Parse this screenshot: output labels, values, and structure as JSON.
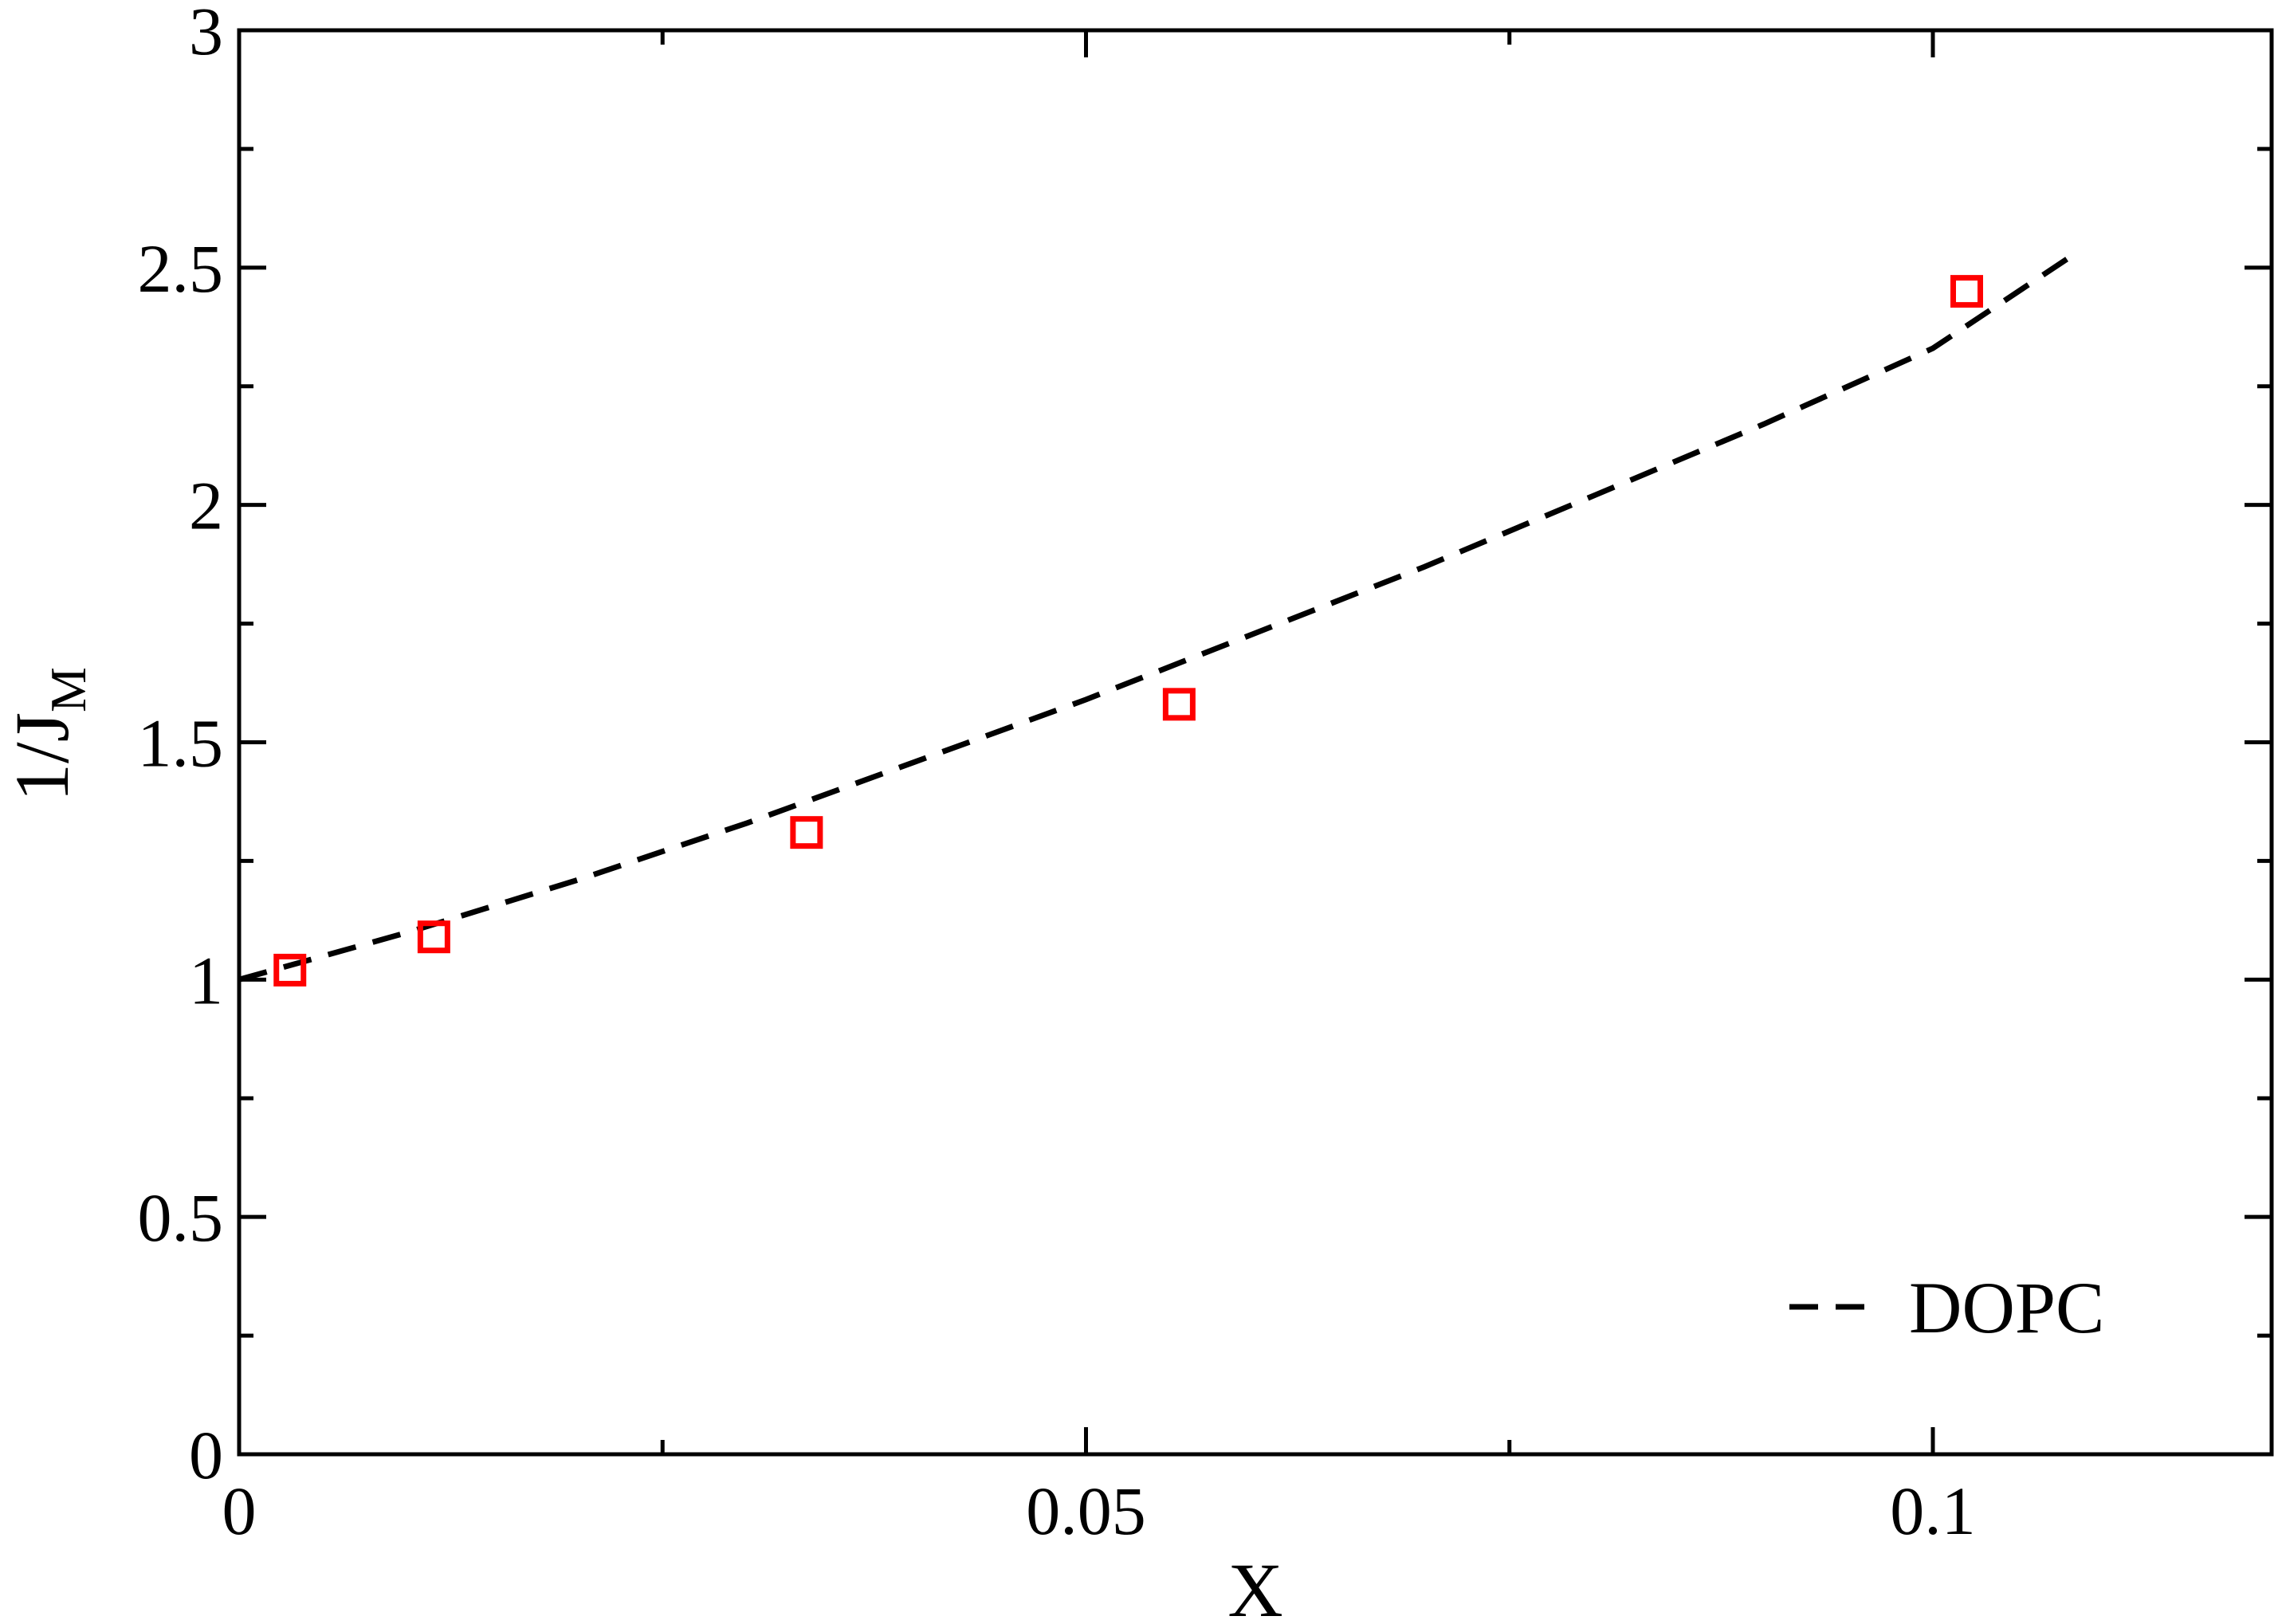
{
  "chart_data": {
    "type": "scatter",
    "xlabel": "X",
    "ylabel_main": "1/J",
    "ylabel_sub": "M",
    "xlim": [
      0,
      0.12
    ],
    "ylim": [
      0,
      3
    ],
    "x_ticks": [
      {
        "value": 0,
        "label": "0"
      },
      {
        "value": 0.05,
        "label": "0.05"
      },
      {
        "value": 0.1,
        "label": "0.1"
      }
    ],
    "x_minor_ticks": [
      0.025,
      0.075
    ],
    "y_ticks": [
      {
        "value": 0,
        "label": "0"
      },
      {
        "value": 0.5,
        "label": "0.5"
      },
      {
        "value": 1,
        "label": "1"
      },
      {
        "value": 1.5,
        "label": "1.5"
      },
      {
        "value": 2,
        "label": "2"
      },
      {
        "value": 2.5,
        "label": "2.5"
      },
      {
        "value": 3,
        "label": "3"
      }
    ],
    "y_minor_ticks": [
      0.25,
      0.75,
      1.25,
      1.75,
      2.25,
      2.75
    ],
    "grid": false,
    "legend_position": "bottom-right",
    "series": [
      {
        "name": "DOPC",
        "kind": "line",
        "style": "dashed",
        "color": "#000000",
        "x": [
          0,
          0.01,
          0.02,
          0.03,
          0.04,
          0.05,
          0.06,
          0.07,
          0.08,
          0.09,
          0.1,
          0.108
        ],
        "y": [
          1.0,
          1.1,
          1.21,
          1.33,
          1.46,
          1.59,
          1.73,
          1.87,
          2.02,
          2.17,
          2.33,
          2.52
        ]
      },
      {
        "kind": "markers",
        "marker": "open-square",
        "color": "#ff0000",
        "x": [
          0.003,
          0.0115,
          0.0335,
          0.0555,
          0.102
        ],
        "y": [
          1.02,
          1.09,
          1.31,
          1.58,
          2.45
        ]
      }
    ]
  }
}
